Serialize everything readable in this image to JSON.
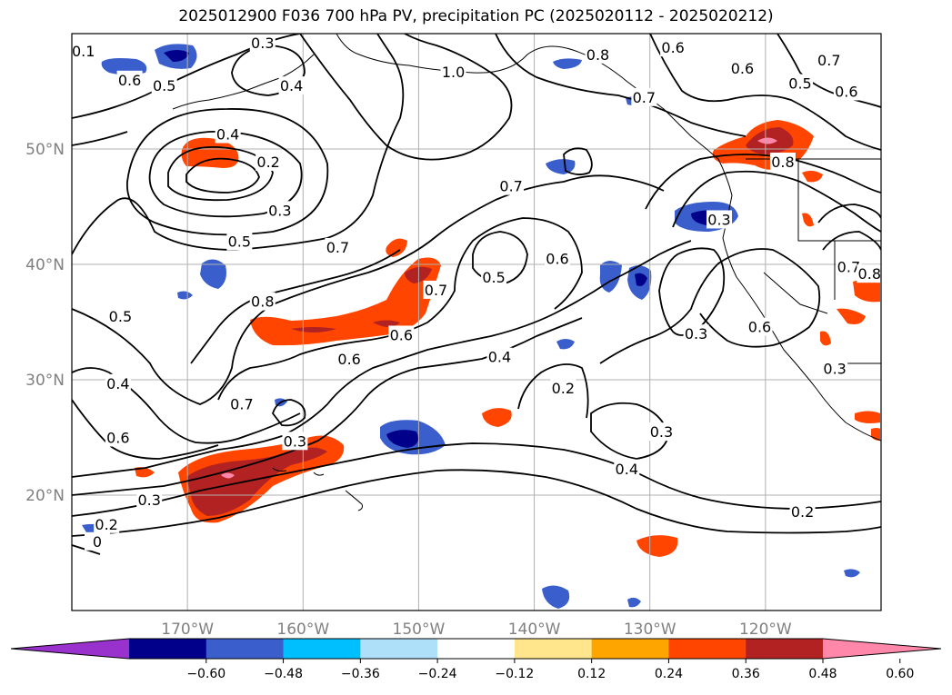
{
  "title": "2025012900 F036 700 hPa PV, precipitation PC (2025020112 - 2025020212)",
  "map": {
    "lon_range": [
      -180,
      -110
    ],
    "lat_range": [
      10,
      60
    ],
    "lat_ticks": [
      {
        "value": 20,
        "label": "20°N"
      },
      {
        "value": 30,
        "label": "30°N"
      },
      {
        "value": 40,
        "label": "40°N"
      },
      {
        "value": 50,
        "label": "50°N"
      }
    ],
    "lon_ticks": [
      {
        "value": -170,
        "label": "170°W"
      },
      {
        "value": -160,
        "label": "160°W"
      },
      {
        "value": -150,
        "label": "150°W"
      },
      {
        "value": -140,
        "label": "140°W"
      },
      {
        "value": -130,
        "label": "130°W"
      },
      {
        "value": -120,
        "label": "120°W"
      }
    ],
    "grid": true
  },
  "colorbar": {
    "colors": [
      "#9932cc",
      "#00008b",
      "#3a5fcd",
      "#00bfff",
      "#aee0fa",
      "#ffffff",
      "#ffe68c",
      "#ffa500",
      "#ff4500",
      "#b22222",
      "#ff88aa"
    ],
    "ticks": [
      "−0.60",
      "−0.48",
      "−0.36",
      "−0.24",
      "−0.12",
      "0.12",
      "0.24",
      "0.36",
      "0.48",
      "0.60"
    ],
    "extend": "both"
  },
  "contour_labels": [
    {
      "text": "0.1",
      "lon": -179.0,
      "lat": 58.5
    },
    {
      "text": "0.6",
      "lon": -175.0,
      "lat": 56.0
    },
    {
      "text": "0.5",
      "lon": -172.0,
      "lat": 55.5
    },
    {
      "text": "0.3",
      "lon": -163.5,
      "lat": 59.2
    },
    {
      "text": "0.4",
      "lon": -161.0,
      "lat": 55.5
    },
    {
      "text": "1.0",
      "lon": -147.0,
      "lat": 56.7
    },
    {
      "text": "0.8",
      "lon": -134.5,
      "lat": 58.2
    },
    {
      "text": "0.6",
      "lon": -128.0,
      "lat": 58.8
    },
    {
      "text": "0.6",
      "lon": -122.0,
      "lat": 57.0
    },
    {
      "text": "0.7",
      "lon": -114.5,
      "lat": 57.7
    },
    {
      "text": "0.5",
      "lon": -117.0,
      "lat": 55.7
    },
    {
      "text": "0.6",
      "lon": -113.0,
      "lat": 55.0
    },
    {
      "text": "0.7",
      "lon": -130.5,
      "lat": 54.5
    },
    {
      "text": "0.4",
      "lon": -166.5,
      "lat": 51.3
    },
    {
      "text": "0.2",
      "lon": -163.0,
      "lat": 48.9
    },
    {
      "text": "0.3",
      "lon": -162.0,
      "lat": 44.7
    },
    {
      "text": "0.8",
      "lon": -118.5,
      "lat": 48.9
    },
    {
      "text": "0.7",
      "lon": -142.0,
      "lat": 46.8
    },
    {
      "text": "0.3",
      "lon": -124.0,
      "lat": 43.9
    },
    {
      "text": "0.5",
      "lon": -165.5,
      "lat": 42.0
    },
    {
      "text": "0.7",
      "lon": -157.0,
      "lat": 41.5
    },
    {
      "text": "0.6",
      "lon": -138.0,
      "lat": 40.5
    },
    {
      "text": "0.5",
      "lon": -143.5,
      "lat": 38.9
    },
    {
      "text": "0.7",
      "lon": -112.8,
      "lat": 39.8
    },
    {
      "text": "0.8",
      "lon": -111.0,
      "lat": 39.2
    },
    {
      "text": "0.8",
      "lon": -163.5,
      "lat": 36.8
    },
    {
      "text": "0.7",
      "lon": -148.5,
      "lat": 37.8
    },
    {
      "text": "0.6",
      "lon": -151.5,
      "lat": 33.9
    },
    {
      "text": "0.6",
      "lon": -156.0,
      "lat": 31.8
    },
    {
      "text": "0.6",
      "lon": -120.5,
      "lat": 34.6
    },
    {
      "text": "0.3",
      "lon": -126.0,
      "lat": 34.0
    },
    {
      "text": "0.5",
      "lon": -175.8,
      "lat": 35.5
    },
    {
      "text": "0.4",
      "lon": -176.0,
      "lat": 29.7
    },
    {
      "text": "0.4",
      "lon": -143.0,
      "lat": 32.0
    },
    {
      "text": "0.3",
      "lon": -114.0,
      "lat": 31.0
    },
    {
      "text": "0.2",
      "lon": -137.5,
      "lat": 29.3
    },
    {
      "text": "0.7",
      "lon": -165.3,
      "lat": 27.9
    },
    {
      "text": "0.6",
      "lon": -176.0,
      "lat": 25.0
    },
    {
      "text": "0.3",
      "lon": -160.7,
      "lat": 24.7
    },
    {
      "text": "0.3",
      "lon": -129.0,
      "lat": 25.5
    },
    {
      "text": "0.4",
      "lon": -132.0,
      "lat": 22.3
    },
    {
      "text": "0.3",
      "lon": -173.3,
      "lat": 19.6
    },
    {
      "text": "0.2",
      "lon": -116.8,
      "lat": 18.6
    },
    {
      "text": "0.2",
      "lon": -177.0,
      "lat": 17.5
    },
    {
      "text": "0",
      "lon": -177.8,
      "lat": 16.0
    }
  ]
}
